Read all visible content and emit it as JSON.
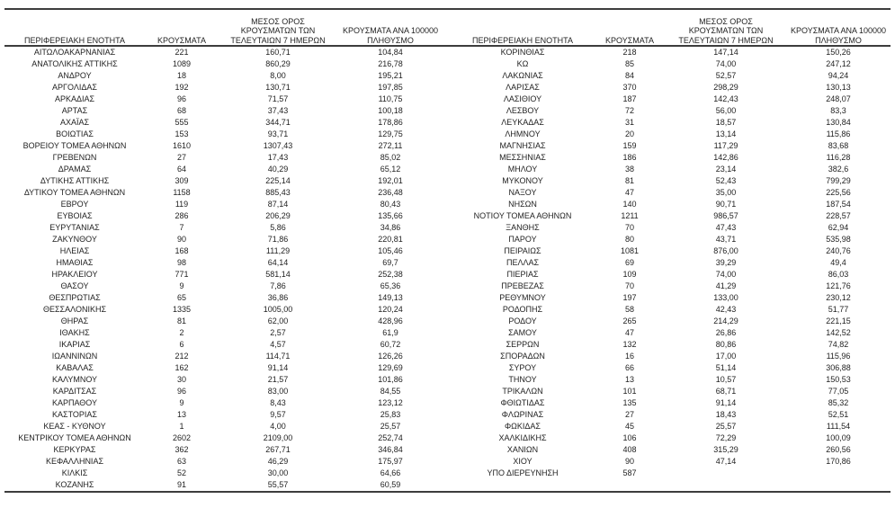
{
  "header_lines": [
    [
      "ΠΕΡΙΦΕΡΕΙΑΚΗ ΕΝΟΤΗΤΑ"
    ],
    [
      "ΚΡΟΥΣΜΑΤΑ"
    ],
    [
      "ΜΕΣΟΣ ΟΡΟΣ",
      "ΚΡΟΥΣΜΑΤΩΝ ΤΩΝ",
      "ΤΕΛΕΥΤΑΙΩΝ 7 ΗΜΕΡΩΝ"
    ],
    [
      "ΚΡΟΥΣΜΑΤΑ ΑΝΑ 100000",
      "ΠΛΗΘΥΣΜΟ"
    ]
  ],
  "left_table": {
    "rows": [
      [
        "ΑΙΤΩΛΟΑΚΑΡΝΑΝΙΑΣ",
        "221",
        "160,71",
        "104,84"
      ],
      [
        "ΑΝΑΤΟΛΙΚΗΣ ΑΤΤΙΚΗΣ",
        "1089",
        "860,29",
        "216,78"
      ],
      [
        "ΑΝΔΡΟΥ",
        "18",
        "8,00",
        "195,21"
      ],
      [
        "ΑΡΓΟΛΙΔΑΣ",
        "192",
        "130,71",
        "197,85"
      ],
      [
        "ΑΡΚΑΔΙΑΣ",
        "96",
        "71,57",
        "110,75"
      ],
      [
        "ΑΡΤΑΣ",
        "68",
        "37,43",
        "100,18"
      ],
      [
        "ΑΧΑΪΑΣ",
        "555",
        "344,71",
        "178,86"
      ],
      [
        "ΒΟΙΩΤΙΑΣ",
        "153",
        "93,71",
        "129,75"
      ],
      [
        "ΒΟΡΕΙΟΥ ΤΟΜΕΑ ΑΘΗΝΩΝ",
        "1610",
        "1307,43",
        "272,11"
      ],
      [
        "ΓΡΕΒΕΝΩΝ",
        "27",
        "17,43",
        "85,02"
      ],
      [
        "ΔΡΑΜΑΣ",
        "64",
        "40,29",
        "65,12"
      ],
      [
        "ΔΥΤΙΚΗΣ ΑΤΤΙΚΗΣ",
        "309",
        "225,14",
        "192,01"
      ],
      [
        "ΔΥΤΙΚΟΥ ΤΟΜΕΑ ΑΘΗΝΩΝ",
        "1158",
        "885,43",
        "236,48"
      ],
      [
        "ΕΒΡΟΥ",
        "119",
        "87,14",
        "80,43"
      ],
      [
        "ΕΥΒΟΙΑΣ",
        "286",
        "206,29",
        "135,66"
      ],
      [
        "ΕΥΡΥΤΑΝΙΑΣ",
        "7",
        "5,86",
        "34,86"
      ],
      [
        "ΖΑΚΥΝΘΟΥ",
        "90",
        "71,86",
        "220,81"
      ],
      [
        "ΗΛΕΙΑΣ",
        "168",
        "111,29",
        "105,46"
      ],
      [
        "ΗΜΑΘΙΑΣ",
        "98",
        "64,14",
        "69,7"
      ],
      [
        "ΗΡΑΚΛΕΙΟΥ",
        "771",
        "581,14",
        "252,38"
      ],
      [
        "ΘΑΣΟΥ",
        "9",
        "7,86",
        "65,36"
      ],
      [
        "ΘΕΣΠΡΩΤΙΑΣ",
        "65",
        "36,86",
        "149,13"
      ],
      [
        "ΘΕΣΣΑΛΟΝΙΚΗΣ",
        "1335",
        "1005,00",
        "120,24"
      ],
      [
        "ΘΗΡΑΣ",
        "81",
        "62,00",
        "428,96"
      ],
      [
        "ΙΘΑΚΗΣ",
        "2",
        "2,57",
        "61,9"
      ],
      [
        "ΙΚΑΡΙΑΣ",
        "6",
        "4,57",
        "60,72"
      ],
      [
        "ΙΩΑΝΝΙΝΩΝ",
        "212",
        "114,71",
        "126,26"
      ],
      [
        "ΚΑΒΑΛΑΣ",
        "162",
        "91,14",
        "129,69"
      ],
      [
        "ΚΑΛΥΜΝΟΥ",
        "30",
        "21,57",
        "101,86"
      ],
      [
        "ΚΑΡΔΙΤΣΑΣ",
        "96",
        "83,00",
        "84,55"
      ],
      [
        "ΚΑΡΠΑΘΟΥ",
        "9",
        "8,43",
        "123,12"
      ],
      [
        "ΚΑΣΤΟΡΙΑΣ",
        "13",
        "9,57",
        "25,83"
      ],
      [
        "ΚΕΑΣ - ΚΥΘΝΟΥ",
        "1",
        "4,00",
        "25,57"
      ],
      [
        "ΚΕΝΤΡΙΚΟΥ ΤΟΜΕΑ ΑΘΗΝΩΝ",
        "2602",
        "2109,00",
        "252,74"
      ],
      [
        "ΚΕΡΚΥΡΑΣ",
        "362",
        "267,71",
        "346,84"
      ],
      [
        "ΚΕΦΑΛΛΗΝΙΑΣ",
        "63",
        "46,29",
        "175,97"
      ],
      [
        "ΚΙΛΚΙΣ",
        "52",
        "30,00",
        "64,66"
      ],
      [
        "ΚΟΖΑΝΗΣ",
        "91",
        "55,57",
        "60,59"
      ]
    ]
  },
  "right_table": {
    "rows": [
      [
        "ΚΟΡΙΝΘΙΑΣ",
        "218",
        "147,14",
        "150,26"
      ],
      [
        "ΚΩ",
        "85",
        "74,00",
        "247,12"
      ],
      [
        "ΛΑΚΩΝΙΑΣ",
        "84",
        "52,57",
        "94,24"
      ],
      [
        "ΛΑΡΙΣΑΣ",
        "370",
        "298,29",
        "130,13"
      ],
      [
        "ΛΑΣΙΘΙΟΥ",
        "187",
        "142,43",
        "248,07"
      ],
      [
        "ΛΕΣΒΟΥ",
        "72",
        "56,00",
        "83,3"
      ],
      [
        "ΛΕΥΚΑΔΑΣ",
        "31",
        "18,57",
        "130,84"
      ],
      [
        "ΛΗΜΝΟΥ",
        "20",
        "13,14",
        "115,86"
      ],
      [
        "ΜΑΓΝΗΣΙΑΣ",
        "159",
        "117,29",
        "83,68"
      ],
      [
        "ΜΕΣΣΗΝΙΑΣ",
        "186",
        "142,86",
        "116,28"
      ],
      [
        "ΜΗΛΟΥ",
        "38",
        "23,14",
        "382,6"
      ],
      [
        "ΜΥΚΟΝΟΥ",
        "81",
        "52,43",
        "799,29"
      ],
      [
        "ΝΑΞΟΥ",
        "47",
        "35,00",
        "225,56"
      ],
      [
        "ΝΗΣΩΝ",
        "140",
        "90,71",
        "187,54"
      ],
      [
        "ΝΟΤΙΟΥ ΤΟΜΕΑ ΑΘΗΝΩΝ",
        "1211",
        "986,57",
        "228,57"
      ],
      [
        "ΞΑΝΘΗΣ",
        "70",
        "47,43",
        "62,94"
      ],
      [
        "ΠΑΡΟΥ",
        "80",
        "43,71",
        "535,98"
      ],
      [
        "ΠΕΙΡΑΙΩΣ",
        "1081",
        "876,00",
        "240,76"
      ],
      [
        "ΠΕΛΛΑΣ",
        "69",
        "39,29",
        "49,4"
      ],
      [
        "ΠΙΕΡΙΑΣ",
        "109",
        "74,00",
        "86,03"
      ],
      [
        "ΠΡΕΒΕΖΑΣ",
        "70",
        "41,29",
        "121,76"
      ],
      [
        "ΡΕΘΥΜΝΟΥ",
        "197",
        "133,00",
        "230,12"
      ],
      [
        "ΡΟΔΟΠΗΣ",
        "58",
        "42,43",
        "51,77"
      ],
      [
        "ΡΟΔΟΥ",
        "265",
        "214,29",
        "221,15"
      ],
      [
        "ΣΑΜΟΥ",
        "47",
        "26,86",
        "142,52"
      ],
      [
        "ΣΕΡΡΩΝ",
        "132",
        "80,86",
        "74,82"
      ],
      [
        "ΣΠΟΡΑΔΩΝ",
        "16",
        "17,00",
        "115,96"
      ],
      [
        "ΣΥΡΟΥ",
        "66",
        "51,14",
        "306,88"
      ],
      [
        "ΤΗΝΟΥ",
        "13",
        "10,57",
        "150,53"
      ],
      [
        "ΤΡΙΚΑΛΩΝ",
        "101",
        "68,71",
        "77,05"
      ],
      [
        "ΦΘΙΩΤΙΔΑΣ",
        "135",
        "91,14",
        "85,32"
      ],
      [
        "ΦΛΩΡΙΝΑΣ",
        "27",
        "18,43",
        "52,51"
      ],
      [
        "ΦΩΚΙΔΑΣ",
        "45",
        "25,57",
        "111,54"
      ],
      [
        "ΧΑΛΚΙΔΙΚΗΣ",
        "106",
        "72,29",
        "100,09"
      ],
      [
        "ΧΑΝΙΩΝ",
        "408",
        "315,29",
        "260,56"
      ],
      [
        "ΧΙΟΥ",
        "90",
        "47,14",
        "170,86"
      ],
      [
        "ΥΠΟ ΔΙΕΡΕΥΝΗΣΗ",
        "587",
        "",
        ""
      ]
    ]
  },
  "colors": {
    "text": "#1f1f1f",
    "rule": "#3d3d3d",
    "background": "#ffffff"
  }
}
